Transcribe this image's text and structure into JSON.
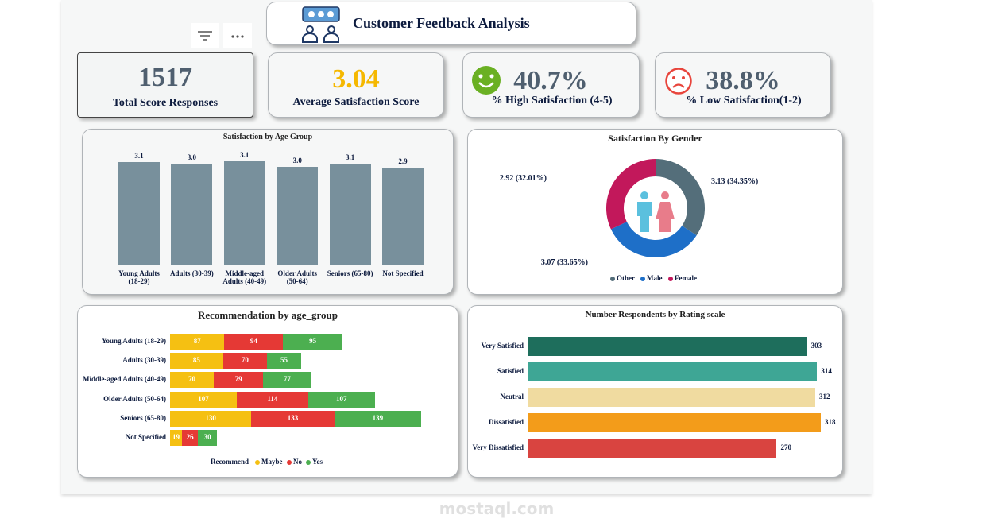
{
  "header": {
    "title": "Customer Feedback Analysis"
  },
  "kpis": [
    {
      "value": 1517,
      "label": "Total Score Responses"
    },
    {
      "value": 3.04,
      "label": "Average Satisfaction Score"
    },
    {
      "value": 40.7,
      "value_label": "40.7%",
      "label": "% High Satisfaction (4-5)"
    },
    {
      "value": 38.8,
      "value_label": "38.8%",
      "label": "% Low Satisfaction(1-2)"
    }
  ],
  "chart_data": [
    {
      "type": "bar",
      "title": "Satisfaction by Age Group",
      "categories": [
        "Young Adults (18-29)",
        "Adults (30-39)",
        "Middle-aged Adults (40-49)",
        "Older Adults (50-64)",
        "Seniors (65-80)",
        "Not Specified"
      ],
      "values": [
        3.1,
        3.04,
        3.12,
        2.96,
        3.06,
        2.94
      ],
      "value_labels": [
        "3.1",
        "3.0",
        "3.1",
        "3.0",
        "3.1",
        "2.9"
      ],
      "color": "#78909c"
    },
    {
      "type": "donut",
      "title": "Satisfaction By Gender",
      "categories": [
        "Other",
        "Male",
        "Female"
      ],
      "values": [
        3.13,
        3.07,
        2.92
      ],
      "value_labels": [
        "3.13 (34.35%)",
        "3.07 (33.65%)",
        "2.92 (32.01%)"
      ],
      "colors": [
        "#546e7a",
        "#1e6fc8",
        "#c2185b"
      ]
    },
    {
      "type": "stacked-bar",
      "title": "Recommendation by age_group",
      "legend_title": "Recommend",
      "categories": [
        "Young Adults (18-29)",
        "Adults (30-39)",
        "Middle-aged Adults (40-49)",
        "Older Adults (50-64)",
        "Seniors (65-80)",
        "Not Specified"
      ],
      "series": [
        {
          "name": "Maybe",
          "color": "#f5c012",
          "values": [
            87,
            85,
            70,
            107,
            130,
            19
          ]
        },
        {
          "name": "No",
          "color": "#e53935",
          "values": [
            94,
            70,
            79,
            114,
            133,
            26
          ]
        },
        {
          "name": "Yes",
          "color": "#4caf50",
          "values": [
            95,
            55,
            77,
            107,
            139,
            30
          ]
        }
      ]
    },
    {
      "type": "hbar",
      "title": "Number Respondents by Rating scale",
      "categories": [
        "Very Satisfied",
        "Satisfied",
        "Neutral",
        "Dissatisfied",
        "Very Dissatisfied"
      ],
      "values": [
        303,
        314,
        312,
        318,
        270
      ],
      "colors": [
        "#1e6e5c",
        "#3ea695",
        "#f0dba0",
        "#f39c1a",
        "#d94440"
      ]
    }
  ],
  "watermark": "mostaql.com"
}
